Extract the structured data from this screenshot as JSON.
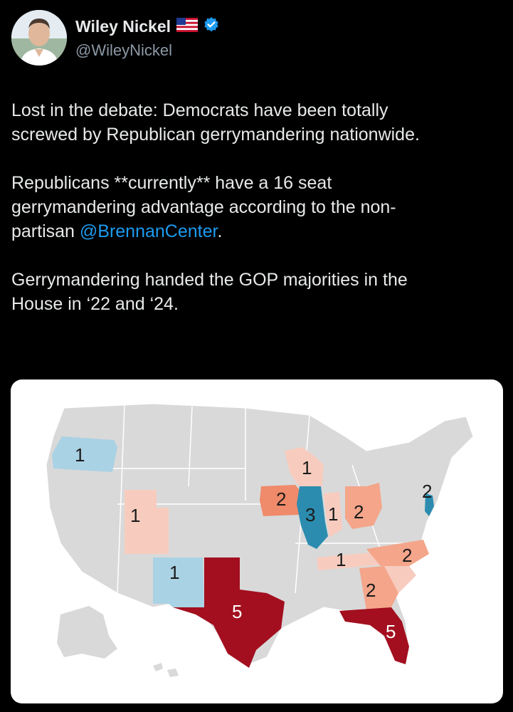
{
  "author": {
    "name": "Wiley Nickel",
    "handle": "@WileyNickel",
    "flag_icon": "us-flag-icon",
    "verified_icon": "verified-badge-icon"
  },
  "tweet": {
    "p1": "Lost in the debate: Democrats have been totally\nscrewed by Republican gerrymandering nationwide.",
    "p2_pre": "Republicans **currently** have a 16 seat\ngerrymandering advantage according to the non-\npartisan ",
    "p2_mention": "@BrennanCenter",
    "p2_post": ".",
    "p3": "Gerrymandering handed the GOP majorities in the\nHouse in ‘22 and ‘24."
  },
  "map": {
    "colors": {
      "base": "#d9d9d9",
      "dem_light": "#a9d2e4",
      "dem_dark": "#2b8cb0",
      "rep_lightest": "#f7ccbf",
      "rep_light": "#f4a58a",
      "rep_medium": "#ef8a6a",
      "rep_dark": "#a30f1f"
    },
    "states": [
      {
        "state": "Oregon",
        "seats": "1",
        "party": "D"
      },
      {
        "state": "Utah",
        "seats": "1",
        "party": "R"
      },
      {
        "state": "New Mexico",
        "seats": "1",
        "party": "D"
      },
      {
        "state": "Texas",
        "seats": "5",
        "party": "R"
      },
      {
        "state": "Iowa",
        "seats": "2",
        "party": "R"
      },
      {
        "state": "Wisconsin",
        "seats": "1",
        "party": "R"
      },
      {
        "state": "Illinois",
        "seats": "3",
        "party": "D"
      },
      {
        "state": "Indiana",
        "seats": "1",
        "party": "R"
      },
      {
        "state": "Ohio",
        "seats": "2",
        "party": "R"
      },
      {
        "state": "New Jersey",
        "seats": "2",
        "party": "D"
      },
      {
        "state": "Tennessee",
        "seats": "1",
        "party": "R"
      },
      {
        "state": "North Carolina",
        "seats": "2",
        "party": "R"
      },
      {
        "state": "Georgia",
        "seats": "2",
        "party": "R"
      },
      {
        "state": "Florida",
        "seats": "5",
        "party": "R"
      }
    ]
  }
}
